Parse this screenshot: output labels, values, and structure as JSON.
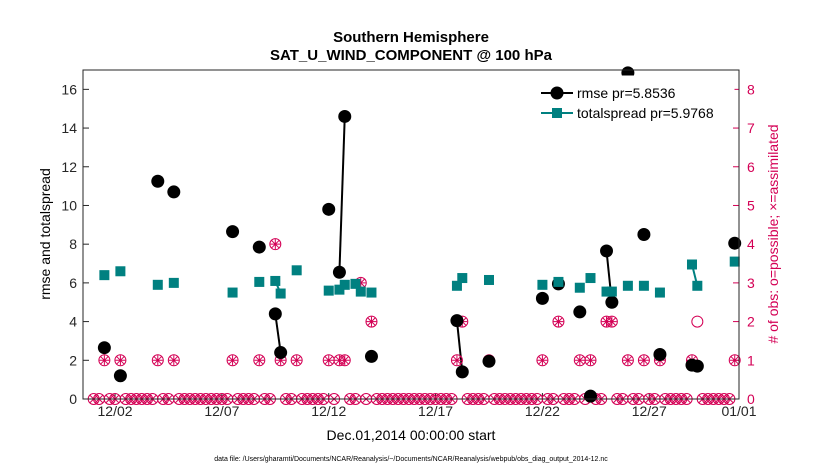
{
  "chart_data": {
    "type": "line",
    "title": "Southern Hemisphere",
    "subtitle": "SAT_U_WIND_COMPONENT @ 100 hPa",
    "xlabel": "Dec.01,2014 00:00:00 start",
    "ylabel": "rmse and totalspread",
    "ylabel_right": "# of obs: o=possible; ×=assimilated",
    "footer": "data file: /Users/gharamti/Documents/NCAR/Reanalysis/~/Documents/NCAR/Reanalysis/webpub/obs_diag_output_2014-12.nc",
    "xlim": [
      0.5,
      31.2
    ],
    "ylim": [
      0,
      17
    ],
    "ylim_right": [
      0,
      8.5
    ],
    "x_ticks": [
      {
        "x": 2,
        "label": "12/02"
      },
      {
        "x": 7,
        "label": "12/07"
      },
      {
        "x": 12,
        "label": "12/12"
      },
      {
        "x": 17,
        "label": "12/17"
      },
      {
        "x": 22,
        "label": "12/22"
      },
      {
        "x": 27,
        "label": "12/27"
      },
      {
        "x": 32,
        "label": "01/01"
      }
    ],
    "y_ticks": [
      0,
      2,
      4,
      6,
      8,
      10,
      12,
      14,
      16
    ],
    "y_ticks_right": [
      0,
      1,
      2,
      3,
      4,
      5,
      6,
      7,
      8
    ],
    "legend": {
      "position": "top-right",
      "entries": [
        "rmse pr=5.8536",
        "totalspread pr=5.9768"
      ]
    },
    "colors": {
      "rmse": "#000000",
      "totalspread": "#008080",
      "obs": "#d40055"
    },
    "series": [
      {
        "name": "rmse",
        "segments": [
          [
            [
              1.5,
              2.65
            ]
          ],
          [
            [
              2.25,
              1.2
            ]
          ],
          [
            [
              4.0,
              11.25
            ]
          ],
          [
            [
              4.75,
              10.7
            ]
          ],
          [
            [
              7.5,
              8.65
            ]
          ],
          [
            [
              8.75,
              7.85
            ]
          ],
          [
            [
              9.5,
              4.4
            ],
            [
              9.75,
              2.4
            ]
          ],
          [
            [
              12.0,
              9.8
            ]
          ],
          [
            [
              12.5,
              6.55
            ],
            [
              12.75,
              14.6
            ]
          ],
          [
            [
              14.0,
              2.2
            ]
          ],
          [
            [
              18.0,
              4.05
            ],
            [
              18.25,
              1.4
            ]
          ],
          [
            [
              19.5,
              1.95
            ]
          ],
          [
            [
              22.0,
              5.2
            ]
          ],
          [
            [
              22.75,
              5.95
            ]
          ],
          [
            [
              23.75,
              4.5
            ]
          ],
          [
            [
              24.25,
              0.15
            ]
          ],
          [
            [
              25.0,
              7.65
            ],
            [
              25.25,
              5.0
            ]
          ],
          [
            [
              26.0,
              16.85
            ]
          ],
          [
            [
              26.75,
              8.5
            ]
          ],
          [
            [
              27.5,
              2.3
            ]
          ],
          [
            [
              29.0,
              1.75
            ]
          ],
          [
            [
              29.25,
              1.7
            ]
          ],
          [
            [
              31.0,
              8.05
            ]
          ]
        ]
      },
      {
        "name": "totalspread",
        "segments": [
          [
            [
              1.5,
              6.4
            ]
          ],
          [
            [
              2.25,
              6.6
            ]
          ],
          [
            [
              4.0,
              5.9
            ]
          ],
          [
            [
              4.75,
              6.0
            ]
          ],
          [
            [
              7.5,
              5.5
            ]
          ],
          [
            [
              8.75,
              6.05
            ]
          ],
          [
            [
              9.5,
              6.1
            ],
            [
              9.75,
              5.45
            ]
          ],
          [
            [
              10.5,
              6.65
            ]
          ],
          [
            [
              12.0,
              5.6
            ]
          ],
          [
            [
              12.5,
              5.65
            ],
            [
              12.75,
              5.9
            ]
          ],
          [
            [
              13.25,
              5.95
            ],
            [
              13.5,
              5.55
            ]
          ],
          [
            [
              14.0,
              5.5
            ]
          ],
          [
            [
              18.0,
              5.85
            ],
            [
              18.25,
              6.25
            ]
          ],
          [
            [
              19.5,
              6.15
            ]
          ],
          [
            [
              22.0,
              5.9
            ]
          ],
          [
            [
              22.75,
              6.05
            ]
          ],
          [
            [
              23.75,
              5.75
            ]
          ],
          [
            [
              24.25,
              6.25
            ]
          ],
          [
            [
              25.0,
              5.55
            ],
            [
              25.25,
              5.55
            ]
          ],
          [
            [
              26.0,
              5.85
            ]
          ],
          [
            [
              26.75,
              5.85
            ]
          ],
          [
            [
              27.5,
              5.5
            ]
          ],
          [
            [
              29.0,
              6.95
            ],
            [
              29.25,
              5.85
            ]
          ],
          [
            [
              31.0,
              7.1
            ]
          ]
        ]
      }
    ],
    "obs_possible": [
      [
        1.5,
        1
      ],
      [
        2.25,
        1
      ],
      [
        4.0,
        1
      ],
      [
        4.75,
        1
      ],
      [
        7.5,
        1
      ],
      [
        8.75,
        1
      ],
      [
        9.5,
        4
      ],
      [
        9.75,
        1
      ],
      [
        10.5,
        1
      ],
      [
        12.0,
        1
      ],
      [
        12.5,
        1
      ],
      [
        12.75,
        1
      ],
      [
        13.5,
        3
      ],
      [
        14.0,
        2
      ],
      [
        18.0,
        1
      ],
      [
        18.25,
        2
      ],
      [
        19.5,
        1
      ],
      [
        22.0,
        1
      ],
      [
        22.75,
        2
      ],
      [
        23.75,
        1
      ],
      [
        24.25,
        1
      ],
      [
        25.0,
        2
      ],
      [
        25.25,
        2
      ],
      [
        26.0,
        1
      ],
      [
        26.75,
        1
      ],
      [
        27.5,
        1
      ],
      [
        29.0,
        1
      ],
      [
        29.25,
        2
      ],
      [
        31.0,
        1
      ]
    ],
    "obs_assimilated": [
      [
        1.5,
        1
      ],
      [
        2.25,
        1
      ],
      [
        4.0,
        1
      ],
      [
        4.75,
        1
      ],
      [
        7.5,
        1
      ],
      [
        8.75,
        1
      ],
      [
        9.5,
        4
      ],
      [
        9.75,
        1
      ],
      [
        10.5,
        1
      ],
      [
        12.0,
        1
      ],
      [
        12.5,
        1
      ],
      [
        12.75,
        1
      ],
      [
        13.5,
        3
      ],
      [
        14.0,
        2
      ],
      [
        18.0,
        1
      ],
      [
        18.25,
        2
      ],
      [
        19.5,
        1
      ],
      [
        22.0,
        1
      ],
      [
        22.75,
        2
      ],
      [
        23.75,
        1
      ],
      [
        24.25,
        1
      ],
      [
        25.0,
        2
      ],
      [
        25.25,
        2
      ],
      [
        26.0,
        1
      ],
      [
        26.75,
        1
      ],
      [
        27.5,
        1
      ],
      [
        29.0,
        1
      ],
      [
        31.0,
        1
      ]
    ]
  }
}
